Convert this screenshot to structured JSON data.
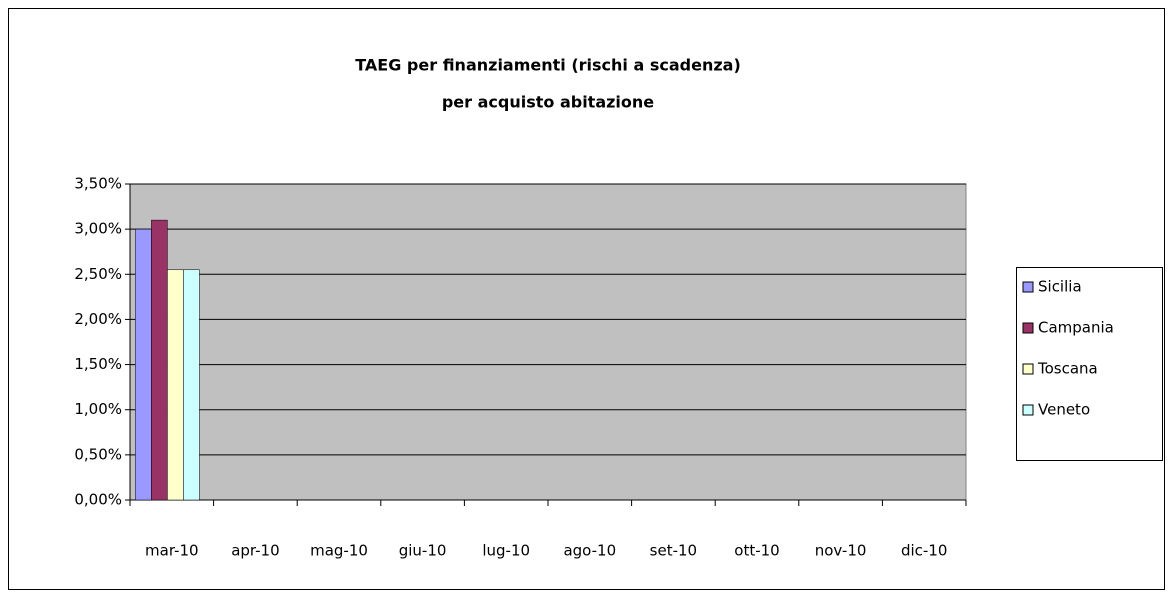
{
  "chart_data": {
    "type": "bar",
    "title": "TAEG per finanziamenti (rischi a scadenza)",
    "subtitle": "per acquisto abitazione",
    "categories": [
      "mar-10",
      "apr-10",
      "mag-10",
      "giu-10",
      "lug-10",
      "ago-10",
      "set-10",
      "ott-10",
      "nov-10",
      "dic-10"
    ],
    "series": [
      {
        "name": "Sicilia",
        "color": "#9999ff",
        "values": [
          3.0,
          null,
          null,
          null,
          null,
          null,
          null,
          null,
          null,
          null
        ]
      },
      {
        "name": "Campania",
        "color": "#993366",
        "values": [
          3.1,
          null,
          null,
          null,
          null,
          null,
          null,
          null,
          null,
          null
        ]
      },
      {
        "name": "Toscana",
        "color": "#ffffcc",
        "values": [
          2.55,
          null,
          null,
          null,
          null,
          null,
          null,
          null,
          null,
          null
        ]
      },
      {
        "name": "Veneto",
        "color": "#ccffff",
        "values": [
          2.55,
          null,
          null,
          null,
          null,
          null,
          null,
          null,
          null,
          null
        ]
      }
    ],
    "ylim": [
      0,
      3.5
    ],
    "yticks": [
      {
        "value": 0,
        "label": "0,00%"
      },
      {
        "value": 0.5,
        "label": "0,50%"
      },
      {
        "value": 1,
        "label": "1,00%"
      },
      {
        "value": 1.5,
        "label": "1,50%"
      },
      {
        "value": 2,
        "label": "2,00%"
      },
      {
        "value": 2.5,
        "label": "2,50%"
      },
      {
        "value": 3,
        "label": "3,00%"
      },
      {
        "value": 3.5,
        "label": "3,50%"
      }
    ],
    "grid": true,
    "legend": "right"
  }
}
